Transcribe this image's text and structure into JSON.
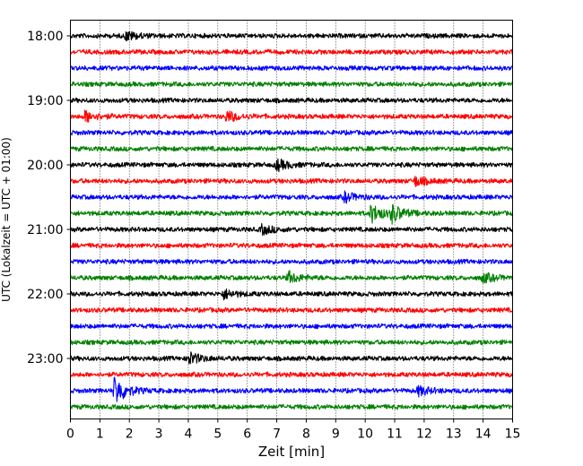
{
  "chart_data": {
    "type": "line",
    "subtype": "helicorder",
    "xlabel": "Zeit  [min]",
    "ylabel": "UTC (Lokalzeit = UTC + 01:00)",
    "xlim": [
      0,
      15
    ],
    "x_ticks": [
      "0",
      "1",
      "2",
      "3",
      "4",
      "5",
      "6",
      "7",
      "8",
      "9",
      "10",
      "11",
      "12",
      "13",
      "14",
      "15"
    ],
    "y_tick_labels": [
      "18:00",
      "19:00",
      "20:00",
      "21:00",
      "22:00",
      "23:00"
    ],
    "grid": "vertical dotted at each minute",
    "trace_colors": [
      "#000000",
      "#ff0000",
      "#0000ff",
      "#008000"
    ],
    "traces": [
      {
        "start": "18:00",
        "color": "#000000",
        "events": [
          [
            1.9,
            5
          ]
        ]
      },
      {
        "start": "18:15",
        "color": "#ff0000",
        "events": []
      },
      {
        "start": "18:30",
        "color": "#0000ff",
        "events": []
      },
      {
        "start": "18:45",
        "color": "#008000",
        "events": []
      },
      {
        "start": "19:00",
        "color": "#000000",
        "events": []
      },
      {
        "start": "19:15",
        "color": "#ff0000",
        "events": [
          [
            0.5,
            6
          ],
          [
            5.3,
            6
          ]
        ]
      },
      {
        "start": "19:30",
        "color": "#0000ff",
        "events": []
      },
      {
        "start": "19:45",
        "color": "#008000",
        "events": []
      },
      {
        "start": "20:00",
        "color": "#000000",
        "events": [
          [
            7.0,
            6
          ]
        ]
      },
      {
        "start": "20:15",
        "color": "#ff0000",
        "events": [
          [
            11.7,
            5
          ]
        ]
      },
      {
        "start": "20:30",
        "color": "#0000ff",
        "events": [
          [
            9.3,
            5
          ]
        ]
      },
      {
        "start": "20:45",
        "color": "#008000",
        "events": [
          [
            10.2,
            10
          ],
          [
            10.9,
            9
          ]
        ]
      },
      {
        "start": "21:00",
        "color": "#000000",
        "events": [
          [
            6.5,
            5
          ]
        ]
      },
      {
        "start": "21:15",
        "color": "#ff0000",
        "events": []
      },
      {
        "start": "21:30",
        "color": "#0000ff",
        "events": []
      },
      {
        "start": "21:45",
        "color": "#008000",
        "events": [
          [
            7.4,
            6
          ],
          [
            14.0,
            5
          ]
        ]
      },
      {
        "start": "22:00",
        "color": "#000000",
        "events": [
          [
            5.2,
            5
          ]
        ]
      },
      {
        "start": "22:15",
        "color": "#ff0000",
        "events": []
      },
      {
        "start": "22:30",
        "color": "#0000ff",
        "events": []
      },
      {
        "start": "22:45",
        "color": "#008000",
        "events": []
      },
      {
        "start": "23:00",
        "color": "#000000",
        "events": [
          [
            4.0,
            7
          ]
        ]
      },
      {
        "start": "23:15",
        "color": "#ff0000",
        "events": []
      },
      {
        "start": "23:30",
        "color": "#0000ff",
        "events": [
          [
            1.5,
            16
          ],
          [
            11.8,
            5
          ]
        ]
      },
      {
        "start": "23:45",
        "color": "#008000",
        "events": []
      }
    ]
  }
}
